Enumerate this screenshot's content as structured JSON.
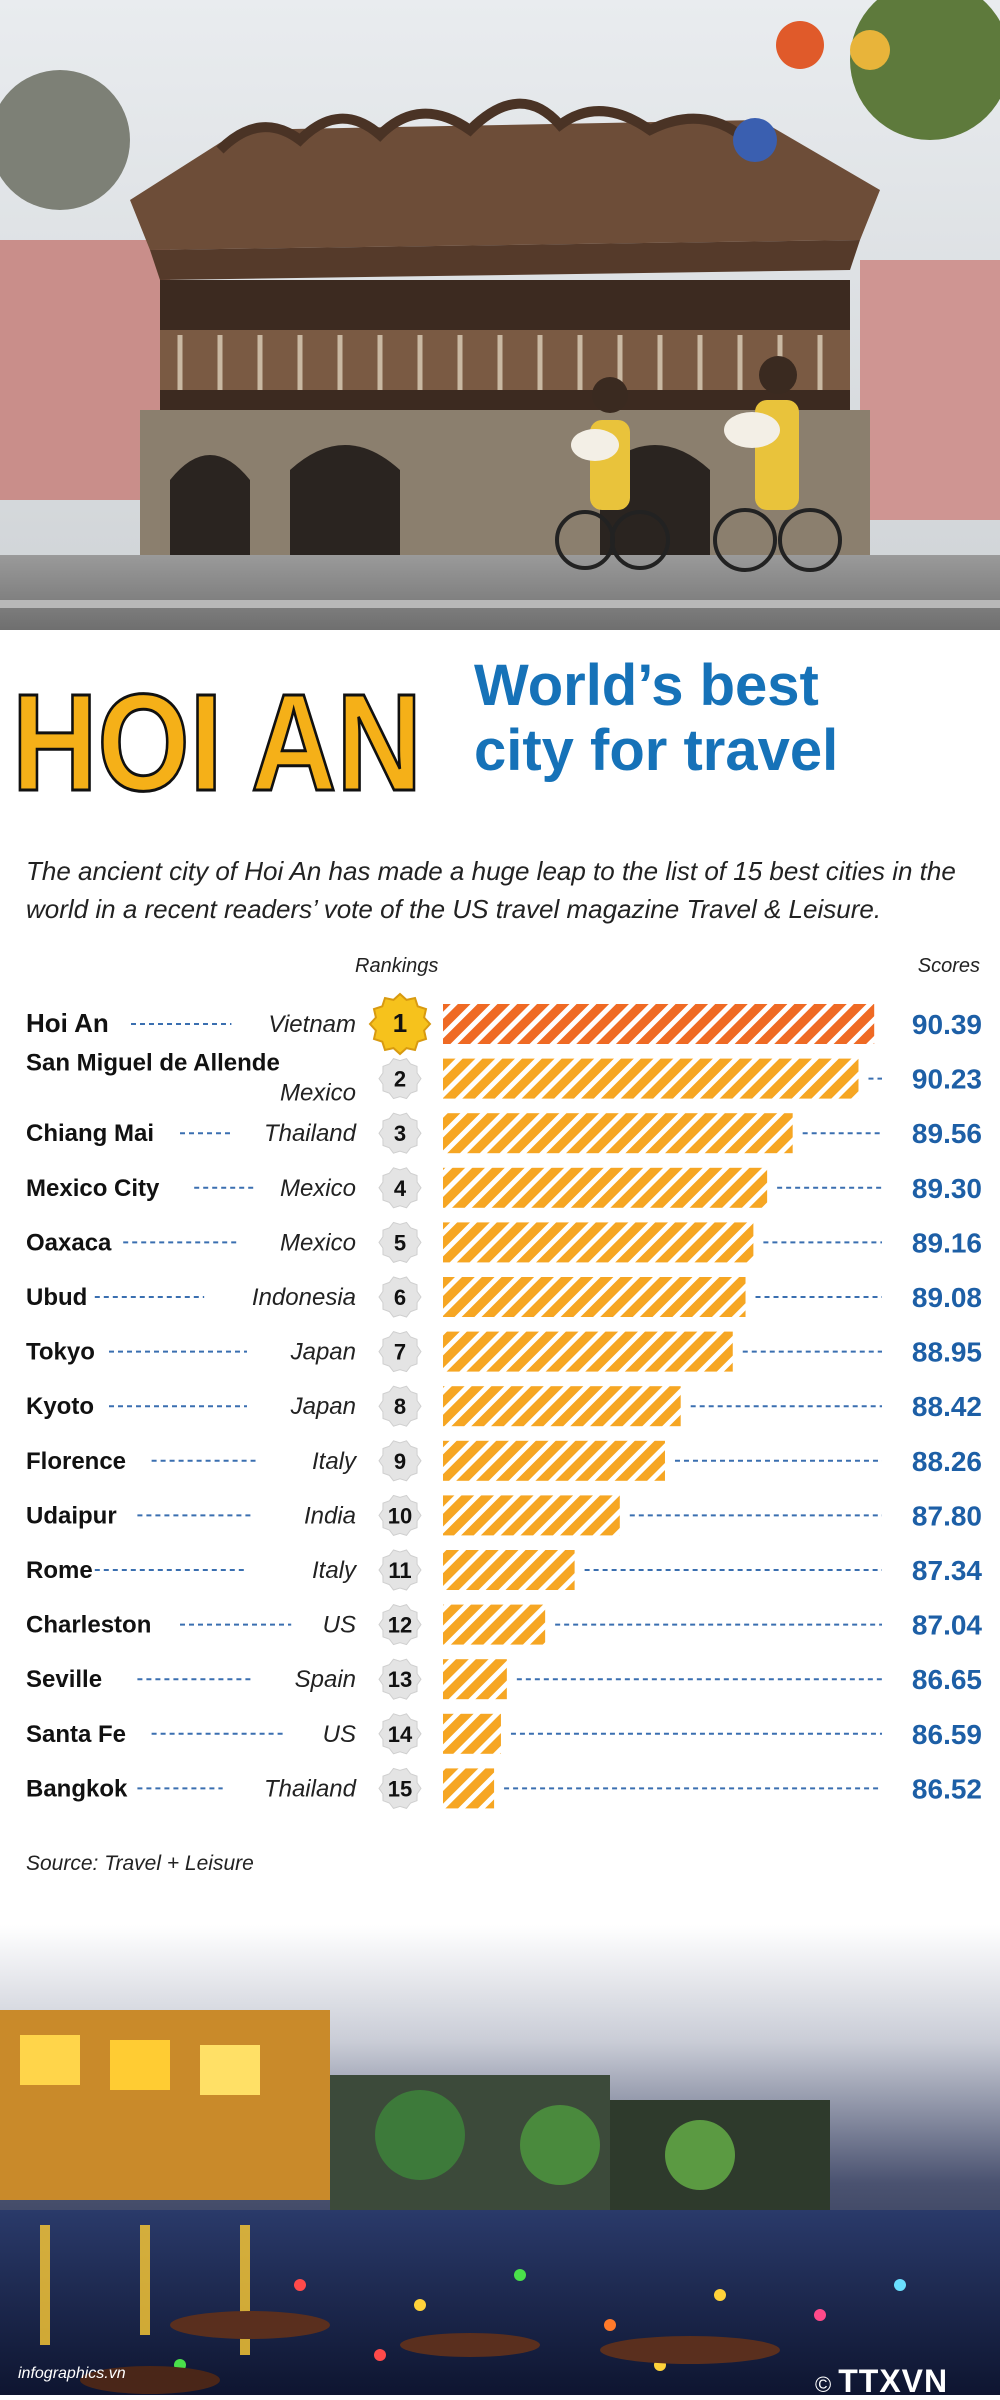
{
  "header": {
    "title_big": "HOI AN",
    "subtitle_line1": "World’s best",
    "subtitle_line2": "city for travel"
  },
  "intro": "The ancient city of Hoi An has made a huge leap to  the list of 15 best cities in the world in a recent readers’ vote of the US travel magazine Travel & Leisure.",
  "source": "Source: Travel + Leisure",
  "footer": {
    "credit": "infographics.vn",
    "logo_text": "TTXVN",
    "logo_mark": "©"
  },
  "colors": {
    "title_yellow": "#f5b018",
    "title_blue": "#1672b8",
    "bar_orange": "#f6a623",
    "bar_top": "#ef6a24",
    "score_blue": "#1d5fa6"
  },
  "chart_data": {
    "type": "bar",
    "orientation": "horizontal",
    "rank_header": "Rankings",
    "score_header": "Scores",
    "categories": [
      "Hoi An",
      "San Miguel de Allende",
      "Chiang Mai",
      "Mexico City",
      "Oaxaca",
      "Ubud",
      "Tokyo",
      "Kyoto",
      "Florence",
      "Udaipur",
      "Rome",
      "Charleston",
      "Seville",
      "Santa Fe",
      "Bangkok"
    ],
    "countries": [
      "Vietnam",
      "Mexico",
      "Thailand",
      "Mexico",
      "Mexico",
      "Indonesia",
      "Japan",
      "Japan",
      "Italy",
      "India",
      "Italy",
      "US",
      "Spain",
      "US",
      "Thailand"
    ],
    "ranks": [
      "1",
      "2",
      "3",
      "4",
      "5",
      "6",
      "7",
      "8",
      "9",
      "10",
      "11",
      "12",
      "13",
      "14",
      "15"
    ],
    "values": [
      90.39,
      90.23,
      89.56,
      89.3,
      89.16,
      89.08,
      88.95,
      88.42,
      88.26,
      87.8,
      87.34,
      87.04,
      86.65,
      86.59,
      86.52
    ],
    "value_labels": [
      "90.39",
      "90.23",
      "89.56",
      "89.30",
      "89.16",
      "89.08",
      "88.95",
      "88.42",
      "88.26",
      "87.80",
      "87.34",
      "87.04",
      "86.65",
      "86.59",
      "86.52"
    ],
    "xlim": [
      86.0,
      90.5
    ]
  }
}
